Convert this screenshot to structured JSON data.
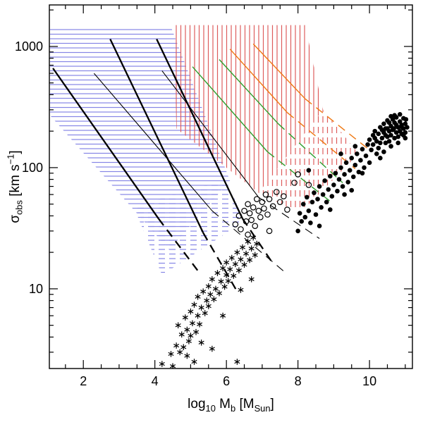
{
  "labels": {
    "y": {
      "symbol": "σ",
      "subscript": "obs",
      "units_pre": " [km s",
      "units_sup": "−1",
      "units_post": "]"
    },
    "x": {
      "func": "log",
      "func_sub": "10",
      "var": " M",
      "var_sub": "b",
      "unit_pre": " [M",
      "unit_sub": "Sun",
      "unit_post": "]"
    }
  },
  "chart_data": {
    "type": "scatter",
    "title": "",
    "xlabel": "log10 Mb [MSun]",
    "ylabel": "sigma_obs [km s^-1]",
    "x_scale": "linear",
    "y_scale": "log",
    "xlim": [
      1.05,
      11.2
    ],
    "ylim": [
      2.2,
      2200
    ],
    "grid": false,
    "frame_color": "#000000",
    "background": "#ffffff",
    "x_ticks": {
      "major": [
        2,
        4,
        6,
        8,
        10
      ],
      "labels": [
        "2",
        "4",
        "6",
        "8",
        "10"
      ],
      "minor_step": 0.5
    },
    "y_ticks": {
      "major": [
        10,
        100,
        1000
      ],
      "labels": [
        "10",
        "100",
        "1000"
      ]
    },
    "regions": [
      {
        "name": "region-blue-hatch-solid",
        "color": "#8585e6",
        "hatch": "horizontal",
        "line_style": "solid",
        "polygon": [
          [
            1.07,
            1450
          ],
          [
            4.45,
            1450
          ],
          [
            6.1,
            78
          ],
          [
            4.4,
            21
          ],
          [
            1.07,
            270
          ]
        ]
      },
      {
        "name": "region-blue-hatch-dashed",
        "color": "#8585e6",
        "hatch": "horizontal",
        "line_style": "dashed",
        "polygon": [
          [
            3.4,
            48
          ],
          [
            6.0,
            80
          ],
          [
            6.5,
            36
          ],
          [
            4.2,
            13
          ]
        ]
      },
      {
        "name": "region-red-hatch-solid",
        "color": "#dd5c5c",
        "hatch": "vertical",
        "line_style": "solid",
        "polygon": [
          [
            4.55,
            1500
          ],
          [
            8.2,
            1500
          ],
          [
            8.7,
            300
          ],
          [
            6.9,
            62
          ],
          [
            4.6,
            210
          ]
        ]
      },
      {
        "name": "region-red-hatch-dashed",
        "color": "#dd5c5c",
        "hatch": "vertical",
        "line_style": "dashed",
        "polygon": [
          [
            6.9,
            62
          ],
          [
            8.7,
            300
          ],
          [
            9.7,
            130
          ],
          [
            8.05,
            42
          ]
        ]
      }
    ],
    "lines": [
      {
        "name": "track-thick-black-1",
        "color": "#000000",
        "width": 2.3,
        "solid": [
          [
            1.15,
            660
          ],
          [
            4.1,
            38
          ]
        ],
        "dashed": [
          [
            4.1,
            38
          ],
          [
            5.25,
            13.5
          ]
        ]
      },
      {
        "name": "track-thick-black-2",
        "color": "#000000",
        "width": 2.3,
        "solid": [
          [
            2.75,
            1150
          ],
          [
            5.35,
            29
          ]
        ],
        "dashed": [
          [
            5.35,
            29
          ],
          [
            6.3,
            9.5
          ]
        ]
      },
      {
        "name": "track-thick-black-3",
        "color": "#000000",
        "width": 2.3,
        "solid": [
          [
            4.05,
            1150
          ],
          [
            6.45,
            38
          ]
        ],
        "dashed": [
          [
            6.45,
            38
          ],
          [
            7.25,
            17
          ]
        ]
      },
      {
        "name": "track-thin-black-1",
        "color": "#000000",
        "width": 1.1,
        "solid": [
          [
            2.3,
            600
          ],
          [
            5.6,
            44
          ]
        ],
        "dashed": [
          [
            5.6,
            44
          ],
          [
            7.6,
            14
          ]
        ]
      },
      {
        "name": "track-thin-black-2",
        "color": "#000000",
        "width": 1.1,
        "solid": [
          [
            4.2,
            630
          ],
          [
            6.9,
            57
          ]
        ],
        "dashed": [
          [
            6.9,
            57
          ],
          [
            8.6,
            26
          ]
        ]
      },
      {
        "name": "track-green-1",
        "color": "#2e9e2e",
        "width": 1.4,
        "solid": [
          [
            5.05,
            680
          ],
          [
            7.15,
            135
          ]
        ],
        "dashed": [
          [
            7.15,
            135
          ],
          [
            9.0,
            50
          ]
        ]
      },
      {
        "name": "track-green-2",
        "color": "#2e9e2e",
        "width": 1.4,
        "solid": [
          [
            5.8,
            780
          ],
          [
            7.45,
            230
          ]
        ],
        "dashed": [
          [
            7.45,
            230
          ],
          [
            9.25,
            75
          ]
        ]
      },
      {
        "name": "track-orange-1",
        "color": "#ee7711",
        "width": 1.4,
        "solid": [
          [
            6.1,
            950
          ],
          [
            7.7,
            285
          ]
        ],
        "dashed": [
          [
            7.7,
            285
          ],
          [
            9.6,
            98
          ]
        ]
      },
      {
        "name": "track-orange-2",
        "color": "#ee7711",
        "width": 1.4,
        "solid": [
          [
            6.75,
            1050
          ],
          [
            8.2,
            370
          ]
        ],
        "dashed": [
          [
            8.2,
            370
          ],
          [
            10.05,
            136
          ]
        ]
      }
    ],
    "series": [
      {
        "name": "asterisk-points",
        "marker": "asterisk",
        "color": "#000000",
        "points": [
          [
            4.2,
            2.4
          ],
          [
            4.45,
            2.9
          ],
          [
            4.5,
            2.3
          ],
          [
            4.6,
            3.4
          ],
          [
            4.65,
            5.0
          ],
          [
            4.7,
            3.0
          ],
          [
            4.75,
            4.2
          ],
          [
            4.8,
            3.3
          ],
          [
            4.85,
            5.8
          ],
          [
            4.9,
            2.8
          ],
          [
            4.9,
            4.6
          ],
          [
            4.95,
            3.7
          ],
          [
            5.0,
            6.5
          ],
          [
            5.0,
            4.1
          ],
          [
            5.05,
            5.2
          ],
          [
            5.1,
            2.5
          ],
          [
            5.1,
            7.4
          ],
          [
            5.15,
            4.4
          ],
          [
            5.2,
            6.0
          ],
          [
            5.2,
            8.6
          ],
          [
            5.25,
            5.1
          ],
          [
            5.3,
            3.6
          ],
          [
            5.3,
            7.0
          ],
          [
            5.35,
            9.5
          ],
          [
            5.4,
            6.3
          ],
          [
            5.45,
            8.0
          ],
          [
            5.5,
            10.5
          ],
          [
            5.5,
            7.2
          ],
          [
            5.55,
            9.0
          ],
          [
            5.6,
            3.2
          ],
          [
            5.6,
            12.0
          ],
          [
            5.65,
            8.2
          ],
          [
            5.7,
            10.0
          ],
          [
            5.75,
            13.5
          ],
          [
            5.8,
            9.2
          ],
          [
            5.85,
            11.5
          ],
          [
            5.9,
            6.0
          ],
          [
            5.9,
            14.8
          ],
          [
            5.95,
            10.4
          ],
          [
            6.0,
            13.0
          ],
          [
            6.0,
            16.5
          ],
          [
            6.05,
            11.6
          ],
          [
            6.1,
            14.5
          ],
          [
            6.15,
            18.0
          ],
          [
            6.2,
            12.8
          ],
          [
            6.25,
            16.0
          ],
          [
            6.3,
            2.5
          ],
          [
            6.3,
            20.0
          ],
          [
            6.35,
            14.2
          ],
          [
            6.4,
            9.8
          ],
          [
            6.4,
            17.5
          ],
          [
            6.45,
            22.0
          ],
          [
            6.5,
            15.8
          ],
          [
            6.55,
            19.5
          ],
          [
            6.6,
            24.5
          ],
          [
            6.65,
            17.3
          ],
          [
            6.7,
            12.0
          ],
          [
            6.7,
            21.5
          ],
          [
            6.75,
            26.5
          ],
          [
            6.8,
            19.0
          ],
          [
            6.85,
            23.5
          ]
        ]
      },
      {
        "name": "open-circle-points",
        "marker": "open-circle",
        "color": "#000000",
        "points": [
          [
            6.25,
            34
          ],
          [
            6.35,
            40
          ],
          [
            6.4,
            31
          ],
          [
            6.5,
            44
          ],
          [
            6.55,
            36
          ],
          [
            6.6,
            28
          ],
          [
            6.6,
            50
          ],
          [
            6.65,
            42
          ],
          [
            6.7,
            37
          ],
          [
            6.75,
            47
          ],
          [
            6.8,
            33
          ],
          [
            6.85,
            55
          ],
          [
            6.9,
            44
          ],
          [
            6.95,
            39
          ],
          [
            7.0,
            52
          ],
          [
            7.05,
            46
          ],
          [
            7.1,
            60
          ],
          [
            7.15,
            41
          ],
          [
            7.2,
            30
          ],
          [
            7.2,
            55
          ],
          [
            7.3,
            48
          ],
          [
            7.4,
            63
          ],
          [
            7.5,
            52
          ],
          [
            7.6,
            58
          ],
          [
            7.7,
            45
          ],
          [
            7.9,
            75
          ],
          [
            8.0,
            88
          ],
          [
            8.3,
            72
          ]
        ]
      },
      {
        "name": "filled-circle-points",
        "marker": "filled-circle",
        "color": "#000000",
        "points": [
          [
            8.0,
            30
          ],
          [
            8.05,
            42
          ],
          [
            8.1,
            36
          ],
          [
            8.15,
            50
          ],
          [
            8.2,
            39
          ],
          [
            8.25,
            57
          ],
          [
            8.3,
            44
          ],
          [
            8.3,
            95
          ],
          [
            8.35,
            35
          ],
          [
            8.4,
            52
          ],
          [
            8.45,
            62
          ],
          [
            8.5,
            41
          ],
          [
            8.55,
            55
          ],
          [
            8.6,
            33
          ],
          [
            8.6,
            70
          ],
          [
            8.65,
            47
          ],
          [
            8.7,
            60
          ],
          [
            8.75,
            78
          ],
          [
            8.8,
            52
          ],
          [
            8.85,
            66
          ],
          [
            8.9,
            45
          ],
          [
            8.9,
            85
          ],
          [
            8.95,
            58
          ],
          [
            9.0,
            72
          ],
          [
            9.05,
            90
          ],
          [
            9.1,
            64
          ],
          [
            9.15,
            80
          ],
          [
            9.2,
            100
          ],
          [
            9.2,
            130
          ],
          [
            9.25,
            70
          ],
          [
            9.3,
            60
          ],
          [
            9.3,
            88
          ],
          [
            9.35,
            110
          ],
          [
            9.4,
            76
          ],
          [
            9.45,
            95
          ],
          [
            9.5,
            65
          ],
          [
            9.5,
            120
          ],
          [
            9.55,
            84
          ],
          [
            9.6,
            105
          ],
          [
            9.6,
            150
          ],
          [
            9.65,
            130
          ],
          [
            9.7,
            92
          ],
          [
            9.75,
            115
          ],
          [
            9.8,
            90
          ],
          [
            9.8,
            142
          ],
          [
            9.85,
            100
          ],
          [
            9.9,
            125
          ],
          [
            9.95,
            155
          ],
          [
            10.0,
            110
          ],
          [
            10.0,
            170
          ],
          [
            10.05,
            140
          ],
          [
            10.1,
            155
          ],
          [
            10.1,
            185
          ],
          [
            10.15,
            175
          ],
          [
            10.15,
            200
          ],
          [
            10.2,
            130
          ],
          [
            10.2,
            165
          ],
          [
            10.25,
            145
          ],
          [
            10.25,
            190
          ],
          [
            10.3,
            120
          ],
          [
            10.3,
            160
          ],
          [
            10.3,
            215
          ],
          [
            10.35,
            175
          ],
          [
            10.35,
            205
          ],
          [
            10.4,
            135
          ],
          [
            10.4,
            195
          ],
          [
            10.4,
            230
          ],
          [
            10.45,
            160
          ],
          [
            10.45,
            185
          ],
          [
            10.45,
            210
          ],
          [
            10.5,
            180
          ],
          [
            10.5,
            210
          ],
          [
            10.5,
            245
          ],
          [
            10.55,
            165
          ],
          [
            10.55,
            200
          ],
          [
            10.55,
            235
          ],
          [
            10.6,
            150
          ],
          [
            10.6,
            185
          ],
          [
            10.6,
            220
          ],
          [
            10.6,
            265
          ],
          [
            10.65,
            205
          ],
          [
            10.65,
            250
          ],
          [
            10.68,
            210
          ],
          [
            10.7,
            175
          ],
          [
            10.7,
            235
          ],
          [
            10.7,
            270
          ],
          [
            10.75,
            195
          ],
          [
            10.75,
            225
          ],
          [
            10.75,
            260
          ],
          [
            10.8,
            160
          ],
          [
            10.8,
            180
          ],
          [
            10.8,
            215
          ],
          [
            10.85,
            200
          ],
          [
            10.85,
            240
          ],
          [
            10.85,
            275
          ],
          [
            10.88,
            218
          ],
          [
            10.9,
            190
          ],
          [
            10.9,
            225
          ],
          [
            10.95,
            185
          ],
          [
            10.95,
            210
          ],
          [
            10.95,
            255
          ],
          [
            11.0,
            175
          ],
          [
            11.0,
            195
          ],
          [
            11.0,
            230
          ],
          [
            11.02,
            250
          ],
          [
            11.05,
            215
          ]
        ]
      }
    ]
  }
}
